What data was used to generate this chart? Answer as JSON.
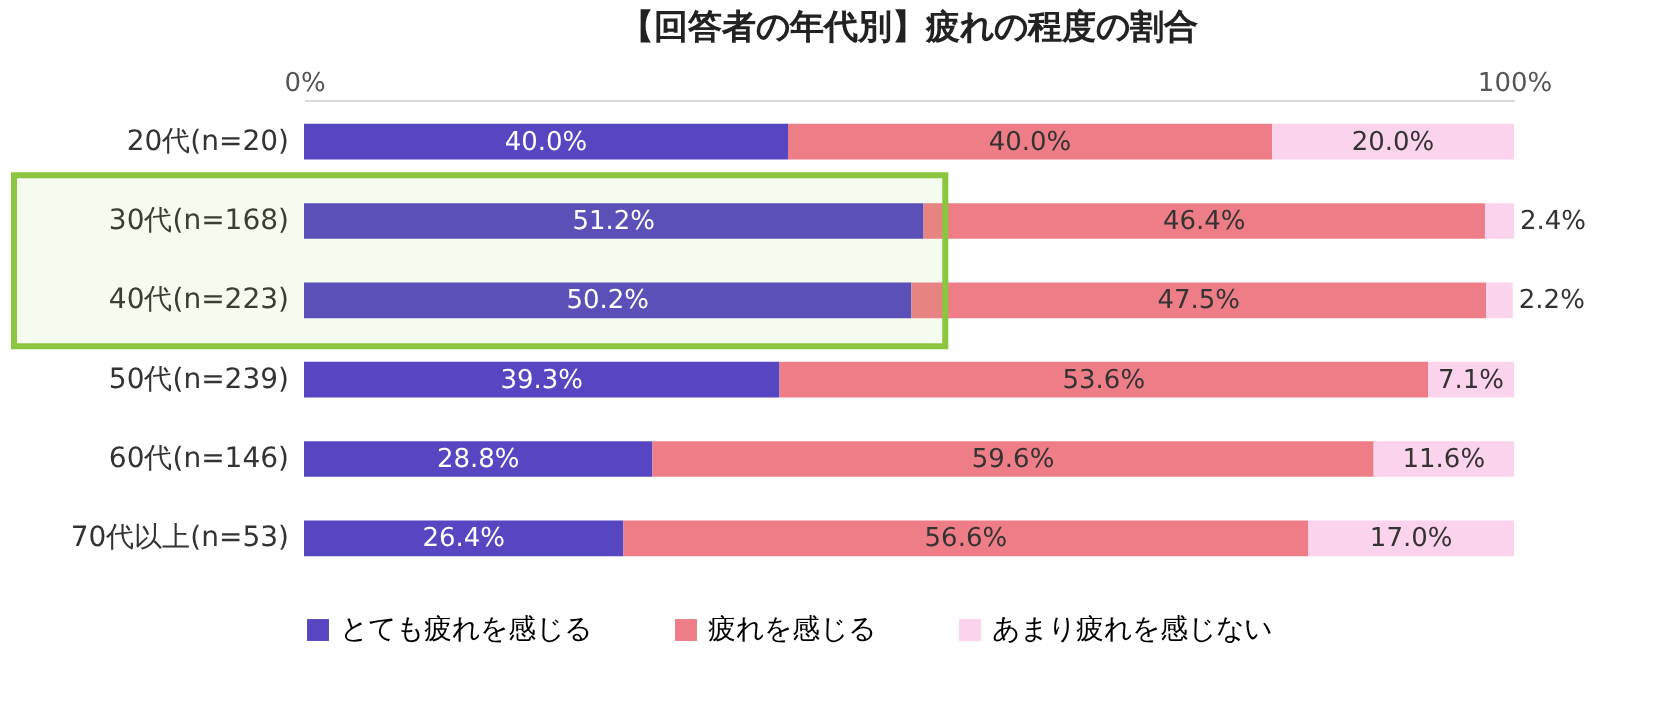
{
  "chart_data": {
    "type": "bar",
    "orientation": "horizontal",
    "stacked": true,
    "title": "【回答者の年代別】疲れの程度の割合",
    "categories": [
      "20代(n=20)",
      "30代(n=168)",
      "40代(n=223)",
      "50代(n=239)",
      "60代(n=146)",
      "70代以上(n=53)"
    ],
    "series": [
      {
        "name": "とても疲れを感じる",
        "color": "#5646c2",
        "values": [
          40.0,
          51.2,
          50.2,
          39.3,
          28.8,
          26.4
        ],
        "value_labels": [
          "40.0%",
          "51.2%",
          "50.2%",
          "39.3%",
          "28.8%",
          "26.4%"
        ]
      },
      {
        "name": "疲れを感じる",
        "color": "#ef7d87",
        "values": [
          40.0,
          46.4,
          47.5,
          53.6,
          59.6,
          56.6
        ],
        "value_labels": [
          "40.0%",
          "46.4%",
          "47.5%",
          "53.6%",
          "59.6%",
          "56.6%"
        ]
      },
      {
        "name": "あまり疲れを感じない",
        "color": "#fcd3ec",
        "values": [
          20.0,
          2.4,
          2.2,
          7.1,
          11.6,
          17.0
        ],
        "value_labels": [
          "20.0%",
          "2.4%",
          "2.2%",
          "7.1%",
          "11.6%",
          "17.0%"
        ]
      }
    ],
    "xlim": [
      0,
      100
    ],
    "xticks": [
      {
        "value": 0,
        "label": "0%"
      },
      {
        "value": 100,
        "label": "100%"
      }
    ],
    "grid": false,
    "legend": "bottom",
    "bands": [
      {
        "axis": "y",
        "from": "30代(n=168)",
        "to": "40代(n=223)",
        "color": "#8cc63f"
      }
    ]
  }
}
